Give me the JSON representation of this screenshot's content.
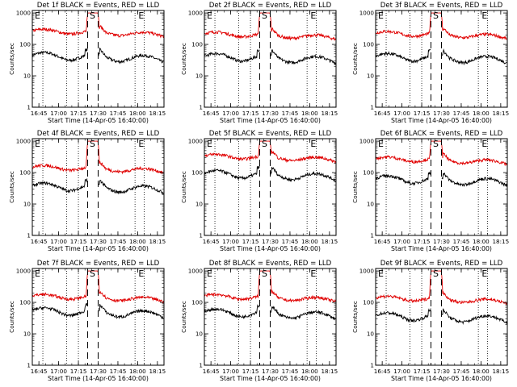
{
  "figure": {
    "x_tick_labels": [
      "16:45",
      "17:00",
      "17:15",
      "17:30",
      "17:45",
      "18:00",
      "18:15"
    ],
    "x_label": "Start Time (14-Apr-05 16:40:00)",
    "y_label": "Counts/sec",
    "y_tick_labels": [
      "1",
      "10",
      "100",
      "1000"
    ],
    "markers": [
      "E",
      "S",
      "E"
    ],
    "colors": {
      "events": "#000000",
      "lld": "#e00000",
      "axis": "#000000"
    }
  },
  "chart_data": [
    {
      "type": "line",
      "title": "Det 1f BLACK = Events, RED = LLD",
      "xlabel": "Start Time (14-Apr-05 16:40:00)",
      "ylabel": "Counts/sec",
      "x_range": [
        "16:40",
        "18:20"
      ],
      "ylim": [
        1,
        1200
      ],
      "yscale": "log",
      "dashed_vlines": [
        "17:22",
        "17:30"
      ],
      "dotted_vlines": [
        "16:48",
        "17:06",
        "17:15",
        "17:58",
        "18:05"
      ],
      "series": [
        {
          "name": "Events",
          "color": "#000000",
          "base": 45,
          "peak": null
        },
        {
          "name": "LLD",
          "color": "#e00000",
          "base": 270,
          "peak": 1000
        }
      ]
    },
    {
      "type": "line",
      "title": "Det 2f BLACK = Events, RED = LLD",
      "xlabel": "Start Time (14-Apr-05 16:40:00)",
      "ylabel": "Counts/sec",
      "x_range": [
        "16:40",
        "18:20"
      ],
      "ylim": [
        1,
        1200
      ],
      "yscale": "log",
      "dashed_vlines": [
        "17:22",
        "17:30"
      ],
      "dotted_vlines": [
        "16:48",
        "17:06",
        "17:15",
        "17:58",
        "18:05"
      ],
      "series": [
        {
          "name": "Events",
          "color": "#000000",
          "base": 42,
          "peak": null
        },
        {
          "name": "LLD",
          "color": "#e00000",
          "base": 220,
          "peak": 1000
        }
      ]
    },
    {
      "type": "line",
      "title": "Det 3f BLACK = Events, RED = LLD",
      "xlabel": "Start Time (14-Apr-05 16:40:00)",
      "ylabel": "Counts/sec",
      "x_range": [
        "16:40",
        "18:20"
      ],
      "ylim": [
        1,
        1200
      ],
      "yscale": "log",
      "dashed_vlines": [
        "17:22",
        "17:30"
      ],
      "dotted_vlines": [
        "16:48",
        "17:06",
        "17:15",
        "17:58",
        "18:05"
      ],
      "series": [
        {
          "name": "Events",
          "color": "#000000",
          "base": 42,
          "peak": null
        },
        {
          "name": "LLD",
          "color": "#e00000",
          "base": 230,
          "peak": 1000
        }
      ]
    },
    {
      "type": "line",
      "title": "Det 4f BLACK = Events, RED = LLD",
      "xlabel": "Start Time (14-Apr-05 16:40:00)",
      "ylabel": "Counts/sec",
      "x_range": [
        "16:40",
        "18:20"
      ],
      "ylim": [
        1,
        1200
      ],
      "yscale": "log",
      "dashed_vlines": [
        "17:22",
        "17:30"
      ],
      "dotted_vlines": [
        "16:48",
        "17:06",
        "17:15",
        "17:58",
        "18:05"
      ],
      "series": [
        {
          "name": "Events",
          "color": "#000000",
          "base": 38,
          "peak": null
        },
        {
          "name": "LLD",
          "color": "#e00000",
          "base": 150,
          "peak": 1000
        }
      ]
    },
    {
      "type": "line",
      "title": "Det 5f BLACK = Events, RED = LLD",
      "xlabel": "Start Time (14-Apr-05 16:40:00)",
      "ylabel": "Counts/sec",
      "x_range": [
        "16:40",
        "18:20"
      ],
      "ylim": [
        1,
        1200
      ],
      "yscale": "log",
      "dashed_vlines": [
        "17:22",
        "17:30"
      ],
      "dotted_vlines": [
        "16:48",
        "17:06",
        "17:15",
        "17:58",
        "18:05"
      ],
      "series": [
        {
          "name": "Events",
          "color": "#000000",
          "base": 95,
          "peak": null
        },
        {
          "name": "LLD",
          "color": "#e00000",
          "base": 340,
          "peak": 1000
        }
      ]
    },
    {
      "type": "line",
      "title": "Det 6f BLACK = Events, RED = LLD",
      "xlabel": "Start Time (14-Apr-05 16:40:00)",
      "ylabel": "Counts/sec",
      "x_range": [
        "16:40",
        "18:20"
      ],
      "ylim": [
        1,
        1200
      ],
      "yscale": "log",
      "dashed_vlines": [
        "17:22",
        "17:30"
      ],
      "dotted_vlines": [
        "16:48",
        "17:06",
        "17:15",
        "17:58",
        "18:05"
      ],
      "series": [
        {
          "name": "Events",
          "color": "#000000",
          "base": 65,
          "peak": null
        },
        {
          "name": "LLD",
          "color": "#e00000",
          "base": 280,
          "peak": 1000
        }
      ]
    },
    {
      "type": "line",
      "title": "Det 7f BLACK = Events, RED = LLD",
      "xlabel": "Start Time (14-Apr-05 16:40:00)",
      "ylabel": "Counts/sec",
      "x_range": [
        "16:40",
        "18:20"
      ],
      "ylim": [
        1,
        1200
      ],
      "yscale": "log",
      "dashed_vlines": [
        "17:22",
        "17:30"
      ],
      "dotted_vlines": [
        "16:48",
        "17:06",
        "17:15",
        "17:58",
        "18:05"
      ],
      "series": [
        {
          "name": "Events",
          "color": "#000000",
          "base": 55,
          "peak": null
        },
        {
          "name": "LLD",
          "color": "#e00000",
          "base": 160,
          "peak": 1000
        }
      ]
    },
    {
      "type": "line",
      "title": "Det 8f BLACK = Events, RED = LLD",
      "xlabel": "Start Time (14-Apr-05 16:40:00)",
      "ylabel": "Counts/sec",
      "x_range": [
        "16:40",
        "18:20"
      ],
      "ylim": [
        1,
        1200
      ],
      "yscale": "log",
      "dashed_vlines": [
        "17:22",
        "17:30"
      ],
      "dotted_vlines": [
        "16:48",
        "17:06",
        "17:15",
        "17:58",
        "18:05"
      ],
      "series": [
        {
          "name": "Events",
          "color": "#000000",
          "base": 50,
          "peak": null
        },
        {
          "name": "LLD",
          "color": "#e00000",
          "base": 160,
          "peak": 1000
        }
      ]
    },
    {
      "type": "line",
      "title": "Det 9f BLACK = Events, RED = LLD",
      "xlabel": "Start Time (14-Apr-05 16:40:00)",
      "ylabel": "Counts/sec",
      "x_range": [
        "16:40",
        "18:20"
      ],
      "ylim": [
        1,
        1200
      ],
      "yscale": "log",
      "dashed_vlines": [
        "17:22",
        "17:30"
      ],
      "dotted_vlines": [
        "16:48",
        "17:06",
        "17:15",
        "17:58",
        "18:05"
      ],
      "series": [
        {
          "name": "Events",
          "color": "#000000",
          "base": 38,
          "peak": null
        },
        {
          "name": "LLD",
          "color": "#e00000",
          "base": 140,
          "peak": 1000
        }
      ]
    }
  ]
}
